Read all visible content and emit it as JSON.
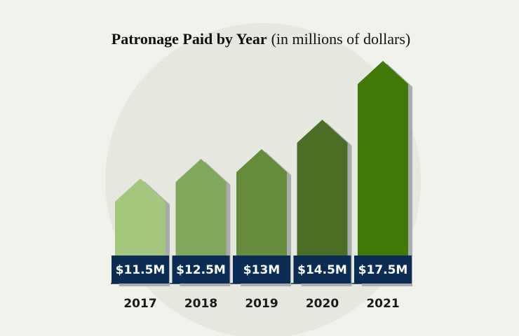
{
  "chart_data": {
    "type": "bar",
    "title": "Patronage Paid by Year",
    "subtitle": "(in millions of dollars)",
    "categories": [
      "2017",
      "2018",
      "2019",
      "2020",
      "2021"
    ],
    "values": [
      11.5,
      12.5,
      13,
      14.5,
      17.5
    ],
    "value_labels": [
      "$11.5M",
      "$12.5M",
      "$13M",
      "$14.5M",
      "$17.5M"
    ],
    "colors": [
      "#a3c77c",
      "#80a85a",
      "#648c3a",
      "#4a6e24",
      "#3f7a08"
    ]
  }
}
